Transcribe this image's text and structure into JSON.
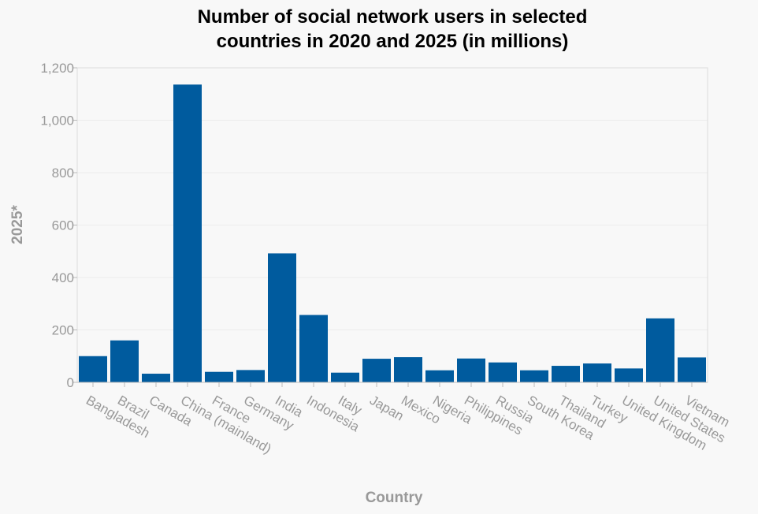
{
  "chart_data": {
    "type": "bar",
    "title_lines": [
      "Number of social network users in selected",
      "countries in 2020 and 2025 (in millions)"
    ],
    "xlabel": "Country",
    "ylabel": "2025*",
    "ylim": [
      0,
      1200
    ],
    "yticks": [
      0,
      200,
      400,
      600,
      800,
      1000,
      1200
    ],
    "ytick_labels": [
      "0",
      "200",
      "400",
      "600",
      "800",
      "1,000",
      "1,200"
    ],
    "categories": [
      "Bangladesh",
      "Brazil",
      "Canada",
      "China (mainland)",
      "France",
      "Germany",
      "India",
      "Indonesia",
      "Italy",
      "Japan",
      "Mexico",
      "Nigeria",
      "Philippines",
      "Russia",
      "South Korea",
      "Thailand",
      "Turkey",
      "United Kingdom",
      "United States",
      "Vietnam"
    ],
    "values": [
      100,
      160,
      33,
      1136,
      40,
      47,
      492,
      257,
      37,
      90,
      96,
      46,
      91,
      76,
      46,
      63,
      72,
      53,
      244,
      95
    ],
    "bar_color": "#005b9e",
    "grid": true,
    "legend": false
  }
}
